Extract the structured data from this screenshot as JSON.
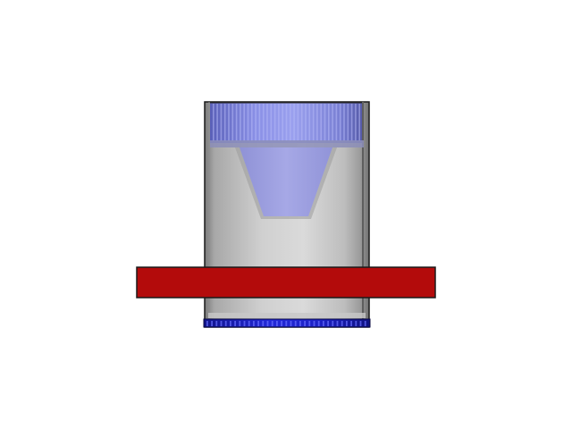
{
  "scene": {
    "background_color": "#ffffff",
    "objects": [
      {
        "id": "cylinder-body",
        "shape": "cylinder",
        "color": "#bcbcbc"
      },
      {
        "id": "knurled-cap",
        "shape": "knurled-ring",
        "color": "#7e84dc"
      },
      {
        "id": "cone-insert",
        "shape": "truncated-cone",
        "color": "#a0a2e2"
      },
      {
        "id": "base-ring",
        "shape": "knurled-ring",
        "color": "#1a1fbf"
      },
      {
        "id": "red-bar",
        "shape": "rectangular-bar",
        "color": "#b30b0b"
      }
    ]
  }
}
